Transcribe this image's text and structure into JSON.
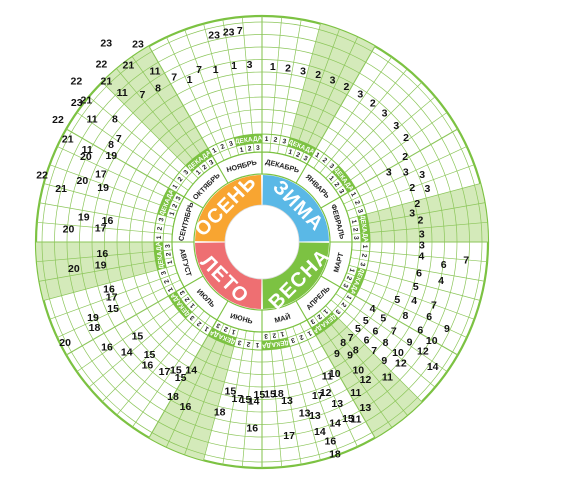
{
  "calendar": {
    "seasons": [
      {
        "label": "ЗИМА",
        "color": "#5ab8e6",
        "start": 0,
        "end": 90
      },
      {
        "label": "ВЕСНА",
        "color": "#7cc242",
        "start": 90,
        "end": 180
      },
      {
        "label": "ЛЕТО",
        "color": "#ee6f72",
        "start": 180,
        "end": 270
      },
      {
        "label": "ОСЕНЬ",
        "color": "#f8a531",
        "start": 270,
        "end": 360
      }
    ],
    "months": [
      "ДЕКАБРЬ",
      "ЯНВАРЬ",
      "ФЕВРАЛЬ",
      "МАРТ",
      "АПРЕЛЬ",
      "МАЙ",
      "ИЮНЬ",
      "ИЮЛЬ",
      "АВГУСТ",
      "СЕНТЯБРЬ",
      "ОКТЯБРЬ",
      "НОЯБРЬ"
    ],
    "decade_label": "ДЕКАДА",
    "decade_numbers": [
      "1",
      "2",
      "3"
    ],
    "colors": {
      "ring": "#7cc242",
      "light_band": "#d4eaba",
      "grid": "#8cc65a",
      "white": "#ffffff"
    },
    "entries": [
      {
        "t": "1",
        "a": 3.5,
        "r": 176
      },
      {
        "t": "2",
        "a": 8.5,
        "r": 176
      },
      {
        "t": "3",
        "a": 13.5,
        "r": 176
      },
      {
        "t": "2",
        "a": 18.5,
        "r": 177
      },
      {
        "t": "3",
        "a": 23.5,
        "r": 177
      },
      {
        "t": "2",
        "a": 28.5,
        "r": 177
      },
      {
        "t": "3",
        "a": 33.5,
        "r": 178
      },
      {
        "t": "2",
        "a": 38.5,
        "r": 178
      },
      {
        "t": "3",
        "a": 43.5,
        "r": 178
      },
      {
        "t": "3",
        "a": 49,
        "r": 178
      },
      {
        "t": "2",
        "a": 54,
        "r": 178
      },
      {
        "t": "2",
        "a": 59,
        "r": 167
      },
      {
        "t": "3",
        "a": 61,
        "r": 145
      },
      {
        "t": "3",
        "a": 64,
        "r": 160
      },
      {
        "t": "3",
        "a": 67,
        "r": 174
      },
      {
        "t": "2",
        "a": 70,
        "r": 160
      },
      {
        "t": "3",
        "a": 72,
        "r": 174
      },
      {
        "t": "2",
        "a": 76,
        "r": 160
      },
      {
        "t": "3",
        "a": 79,
        "r": 153
      },
      {
        "t": "2",
        "a": 82,
        "r": 160
      },
      {
        "t": "3",
        "a": 87,
        "r": 160
      },
      {
        "t": "3",
        "a": 91,
        "r": 160
      },
      {
        "t": "4",
        "a": 95,
        "r": 160
      },
      {
        "t": "7",
        "a": 95,
        "r": 205
      },
      {
        "t": "6",
        "a": 97,
        "r": 183
      },
      {
        "t": "6",
        "a": 101,
        "r": 160
      },
      {
        "t": "4",
        "a": 102,
        "r": 183
      },
      {
        "t": "5",
        "a": 106,
        "r": 160
      },
      {
        "t": "7",
        "a": 110,
        "r": 183
      },
      {
        "t": "4",
        "a": 111,
        "r": 163
      },
      {
        "t": "5",
        "a": 113,
        "r": 147
      },
      {
        "t": "6",
        "a": 114,
        "r": 183
      },
      {
        "t": "8",
        "a": 117,
        "r": 161
      },
      {
        "t": "9",
        "a": 115,
        "r": 204
      },
      {
        "t": "6",
        "a": 119,
        "r": 181
      },
      {
        "t": "10",
        "a": 120,
        "r": 196
      },
      {
        "t": "4",
        "a": 121,
        "r": 129
      },
      {
        "t": "5",
        "a": 122,
        "r": 143
      },
      {
        "t": "7",
        "a": 124,
        "r": 159
      },
      {
        "t": "9",
        "a": 124,
        "r": 178
      },
      {
        "t": "12",
        "a": 124,
        "r": 194
      },
      {
        "t": "14",
        "a": 126,
        "r": 211
      },
      {
        "t": "5",
        "a": 127,
        "r": 130
      },
      {
        "t": "6",
        "a": 128,
        "r": 144
      },
      {
        "t": "8",
        "a": 129,
        "r": 159
      },
      {
        "t": "10",
        "a": 129,
        "r": 175
      },
      {
        "t": "12",
        "a": 131,
        "r": 184
      },
      {
        "t": "5",
        "a": 132,
        "r": 129
      },
      {
        "t": "6",
        "a": 133,
        "r": 143
      },
      {
        "t": "7",
        "a": 134,
        "r": 156
      },
      {
        "t": "9",
        "a": 134,
        "r": 170
      },
      {
        "t": "11",
        "a": 137,
        "r": 184
      },
      {
        "t": "7",
        "a": 137,
        "r": 130
      },
      {
        "t": "8",
        "a": 139,
        "r": 143
      },
      {
        "t": "8",
        "a": 141,
        "r": 129
      },
      {
        "t": "9",
        "a": 142,
        "r": 143
      },
      {
        "t": "10",
        "a": 143,
        "r": 160
      },
      {
        "t": "12",
        "a": 143,
        "r": 172
      },
      {
        "t": "11",
        "a": 148,
        "r": 177
      },
      {
        "t": "13",
        "a": 148,
        "r": 195
      },
      {
        "t": "9",
        "a": 146,
        "r": 134
      },
      {
        "t": "10",
        "a": 151,
        "r": 150
      },
      {
        "t": "11",
        "a": 154,
        "r": 149
      },
      {
        "t": "12",
        "a": 157,
        "r": 163
      },
      {
        "t": "13",
        "a": 155,
        "r": 178
      },
      {
        "t": "15",
        "a": 154,
        "r": 196
      },
      {
        "t": "13",
        "a": 163,
        "r": 181
      },
      {
        "t": "14",
        "a": 158,
        "r": 195
      },
      {
        "t": "16",
        "a": 161,
        "r": 210
      },
      {
        "t": "14",
        "a": 163,
        "r": 198
      },
      {
        "t": "18",
        "a": 161,
        "r": 224
      },
      {
        "t": "11",
        "a": 152,
        "r": 200
      },
      {
        "t": "17",
        "a": 172,
        "r": 195
      },
      {
        "t": "13",
        "a": 166,
        "r": 176
      },
      {
        "t": "17",
        "a": 160,
        "r": 163
      },
      {
        "t": "13",
        "a": 171,
        "r": 160
      },
      {
        "t": "18",
        "a": 174,
        "r": 152
      },
      {
        "t": "15",
        "a": 177,
        "r": 152
      },
      {
        "t": "15",
        "a": 181,
        "r": 152
      },
      {
        "t": "14",
        "a": 183,
        "r": 159
      },
      {
        "t": "15",
        "a": 186,
        "r": 158
      },
      {
        "t": "17",
        "a": 189,
        "r": 158
      },
      {
        "t": "15",
        "a": 192,
        "r": 152
      },
      {
        "t": "16",
        "a": 183,
        "r": 186
      },
      {
        "t": "18",
        "a": 194,
        "r": 175
      },
      {
        "t": "16",
        "a": 205,
        "r": 181
      },
      {
        "t": "18",
        "a": 210,
        "r": 178
      },
      {
        "t": "15",
        "a": 211,
        "r": 158
      },
      {
        "t": "14",
        "a": 209,
        "r": 146
      },
      {
        "t": "15",
        "a": 214,
        "r": 154
      },
      {
        "t": "17",
        "a": 217,
        "r": 162
      },
      {
        "t": "16",
        "a": 223,
        "r": 168
      },
      {
        "t": "15",
        "a": 225,
        "r": 159
      },
      {
        "t": "14",
        "a": 231,
        "r": 174
      },
      {
        "t": "15",
        "a": 233,
        "r": 156
      },
      {
        "t": "16",
        "a": 236,
        "r": 187
      },
      {
        "t": "20",
        "a": 243,
        "r": 221
      },
      {
        "t": "18",
        "a": 243,
        "r": 188
      },
      {
        "t": "19",
        "a": 246,
        "r": 185
      },
      {
        "t": "15",
        "a": 246,
        "r": 163
      },
      {
        "t": "17",
        "a": 250,
        "r": 160
      },
      {
        "t": "16",
        "a": 253,
        "r": 160
      },
      {
        "t": "20",
        "a": 262,
        "r": 190
      },
      {
        "t": "19",
        "a": 262,
        "r": 163
      },
      {
        "t": "16",
        "a": 266,
        "r": 160
      },
      {
        "t": "20",
        "a": 274,
        "r": 194
      },
      {
        "t": "17",
        "a": 275,
        "r": 162
      },
      {
        "t": "19",
        "a": 278,
        "r": 180
      },
      {
        "t": "16",
        "a": 278,
        "r": 156
      },
      {
        "t": "21",
        "a": 285,
        "r": 208
      },
      {
        "t": "22",
        "a": 287,
        "r": 230
      },
      {
        "t": "20",
        "a": 289,
        "r": 190
      },
      {
        "t": "19",
        "a": 289,
        "r": 168
      },
      {
        "t": "17",
        "a": 293,
        "r": 175
      },
      {
        "t": "20",
        "a": 296,
        "r": 196
      },
      {
        "t": "21",
        "a": 298,
        "r": 220
      },
      {
        "t": "19",
        "a": 300,
        "r": 174
      },
      {
        "t": "11",
        "a": 298,
        "r": 198
      },
      {
        "t": "22",
        "a": 301,
        "r": 238
      },
      {
        "t": "8",
        "a": 303,
        "r": 180
      },
      {
        "t": "7",
        "a": 306,
        "r": 177
      },
      {
        "t": "23",
        "a": 307,
        "r": 232
      },
      {
        "t": "11",
        "a": 306,
        "r": 210
      },
      {
        "t": "21",
        "a": 309,
        "r": 226
      },
      {
        "t": "8",
        "a": 310,
        "r": 192
      },
      {
        "t": "22",
        "a": 311,
        "r": 246
      },
      {
        "t": "21",
        "a": 316,
        "r": 224
      },
      {
        "t": "11",
        "a": 317,
        "r": 205
      },
      {
        "t": "7",
        "a": 321,
        "r": 190
      },
      {
        "t": "22",
        "a": 318,
        "r": 240
      },
      {
        "t": "23",
        "a": 322,
        "r": 253
      },
      {
        "t": "21",
        "a": 323,
        "r": 222
      },
      {
        "t": "8",
        "a": 326,
        "r": 186
      },
      {
        "t": "11",
        "a": 328,
        "r": 202
      },
      {
        "t": "23",
        "a": 328,
        "r": 234
      },
      {
        "t": "7",
        "a": 332,
        "r": 187
      },
      {
        "t": "1",
        "a": 336,
        "r": 178
      },
      {
        "t": "7",
        "a": 340,
        "r": 184
      },
      {
        "t": "1",
        "a": 345,
        "r": 179
      },
      {
        "t": "23",
        "a": 347,
        "r": 213
      },
      {
        "t": "23",
        "a": 351,
        "r": 213
      },
      {
        "t": "7",
        "a": 354,
        "r": 213
      },
      {
        "t": "1",
        "a": 351,
        "r": 179
      },
      {
        "t": "3",
        "a": 356,
        "r": 178
      }
    ]
  }
}
